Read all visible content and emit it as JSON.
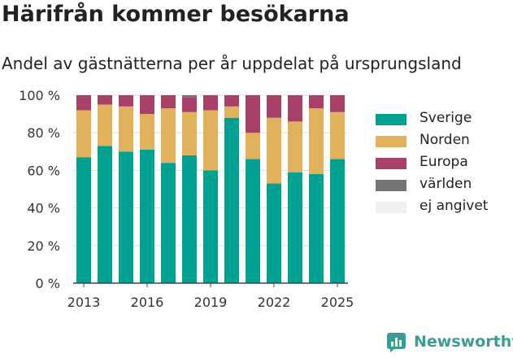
{
  "header": {
    "title": "Härifrån kommer besökarna",
    "subtitle": "Andel av gästnätterna per år uppdelat på ursprungsland"
  },
  "chart_data": {
    "type": "bar",
    "stacked": true,
    "x": [
      2013,
      2014,
      2015,
      2016,
      2017,
      2018,
      2019,
      2020,
      2021,
      2022,
      2023,
      2024,
      2025
    ],
    "x_tick_labels": [
      "2013",
      "2016",
      "2019",
      "2022",
      "2025"
    ],
    "y_tick_labels": [
      "0 %",
      "20 %",
      "40 %",
      "60 %",
      "80 %",
      "100 %"
    ],
    "ylim": [
      0,
      100
    ],
    "grid": true,
    "legend_position": "right",
    "series": [
      {
        "name": "Sverige",
        "color": "#00a191",
        "values": [
          67,
          73,
          70,
          71,
          64,
          68,
          60,
          88,
          66,
          53,
          59,
          58,
          66
        ]
      },
      {
        "name": "Norden",
        "color": "#e1b25c",
        "values": [
          25,
          22,
          24,
          19,
          29,
          23,
          32,
          6,
          14,
          35,
          27,
          35,
          25
        ]
      },
      {
        "name": "Europa",
        "color": "#a8416a",
        "values": [
          8,
          5,
          6,
          10,
          7,
          8,
          8,
          6,
          20,
          12,
          14,
          7,
          9
        ]
      },
      {
        "name": "världen",
        "color": "#747474",
        "values": [
          0,
          0,
          0,
          0,
          0,
          1,
          0,
          0,
          0,
          0,
          0,
          0,
          0
        ]
      },
      {
        "name": "ej angivet",
        "color": "#f0f0f0",
        "values": [
          0,
          0,
          0,
          0,
          0,
          0,
          0,
          0,
          0,
          0,
          0,
          0,
          0
        ]
      }
    ]
  },
  "brand": {
    "name": "Newsworthy",
    "icon": "bar-chart-logo-icon",
    "color": "#3a9d95"
  }
}
